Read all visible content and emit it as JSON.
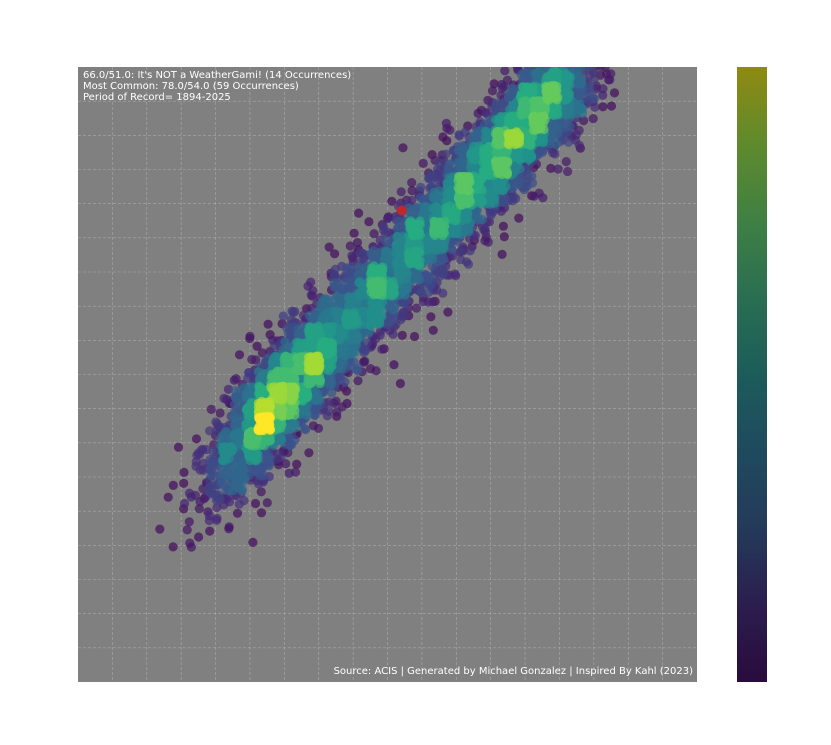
{
  "figure": {
    "annotation_lines": [
      "66.0/51.0: It's NOT a WeatherGami! (14 Occurrences)",
      "Most Common: 78.0/54.0 (59 Occurrences)",
      "Period of Record= 1894-2025"
    ],
    "source_text": "Source: ACIS | Generated by Michael Gonzalez | Inspired By Kahl (2023)"
  },
  "colors": {
    "plot_background": "#808080",
    "grid": "#b4b4b4",
    "highlight_point": "#c0282b",
    "colormap": [
      "#440154",
      "#472c7a",
      "#3b528b",
      "#2c728e",
      "#21918c",
      "#28ae80",
      "#5ec962",
      "#addc30",
      "#fde725"
    ],
    "colorbar_colormap": [
      "#2a0b3d",
      "#2b1e4e",
      "#243a5a",
      "#1f4a5e",
      "#1c5c5a",
      "#2a6e52",
      "#3f8043",
      "#5f8a2c",
      "#8f8a12"
    ]
  },
  "chart_data": {
    "type": "scatter",
    "title": "",
    "xlabel": "",
    "ylabel": "",
    "xlim": [
      9,
      118
    ],
    "ylim": [
      -18,
      72
    ],
    "grid": true,
    "legend": "none",
    "colorbar": true,
    "colorbar_ticks": false,
    "density_color": true,
    "x_tick_count": 18,
    "y_tick_count": 18,
    "axis_ticks_visible": false,
    "scatter_description_units": "daily high temperature (x) vs daily low temperature (y), degF",
    "highlight": {
      "x": 66.0,
      "y": 51.0,
      "count": 14,
      "label": "It's NOT a WeatherGami!"
    },
    "most_common": {
      "x": 78.0,
      "y": 54.0,
      "count": 59
    },
    "period_of_record": "1894-2025"
  }
}
